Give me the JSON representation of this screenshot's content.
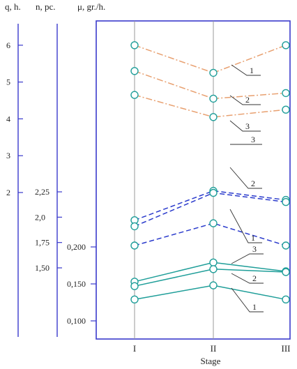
{
  "chart_data": {
    "type": "line",
    "categories": [
      "I",
      "II",
      "III"
    ],
    "xlabel": "Stage",
    "axes": [
      {
        "key": "q",
        "title": "q, h.",
        "ticks": [
          "2",
          "3",
          "4",
          "5",
          "6"
        ],
        "tick_values": [
          2,
          3,
          4,
          5,
          6
        ]
      },
      {
        "key": "n",
        "title": "n, pc.",
        "ticks": [
          "1,50",
          "1,75",
          "2,0",
          "2,25"
        ],
        "tick_values": [
          1.5,
          1.75,
          2.0,
          2.25
        ]
      },
      {
        "key": "mu",
        "title": "μ, gr./h.",
        "ticks": [
          "0,100",
          "0,150",
          "0,200"
        ],
        "tick_values": [
          0.1,
          0.15,
          0.2
        ]
      }
    ],
    "groups": [
      {
        "axis": "q",
        "style": "dash-dot",
        "color": "#e8a070",
        "series": [
          {
            "label": "1",
            "values": [
              6.0,
              5.25,
              6.0
            ]
          },
          {
            "label": "2",
            "values": [
              5.3,
              4.55,
              4.7
            ]
          },
          {
            "label": "3",
            "values": [
              4.65,
              4.05,
              4.25
            ]
          }
        ]
      },
      {
        "axis": "n",
        "style": "dashed",
        "color": "#2a3acc",
        "series": [
          {
            "label": "3",
            "values": [
              1.97,
              2.26,
              2.17
            ]
          },
          {
            "label": "2",
            "values": [
              1.91,
              2.24,
              2.15
            ]
          },
          {
            "label": "1",
            "values": [
              1.72,
              1.94,
              1.72
            ]
          }
        ]
      },
      {
        "axis": "mu",
        "style": "solid",
        "color": "#1f9e99",
        "series": [
          {
            "label": "3",
            "values": [
              0.153,
              0.179,
              0.167
            ]
          },
          {
            "label": "2",
            "values": [
              0.147,
              0.17,
              0.166
            ]
          },
          {
            "label": "1",
            "values": [
              0.129,
              0.148,
              0.129
            ]
          }
        ]
      }
    ],
    "colors": {
      "axis": "#3a3acc",
      "gridline": "#999999",
      "marker": "#1f9e99",
      "text": "#222222"
    }
  }
}
